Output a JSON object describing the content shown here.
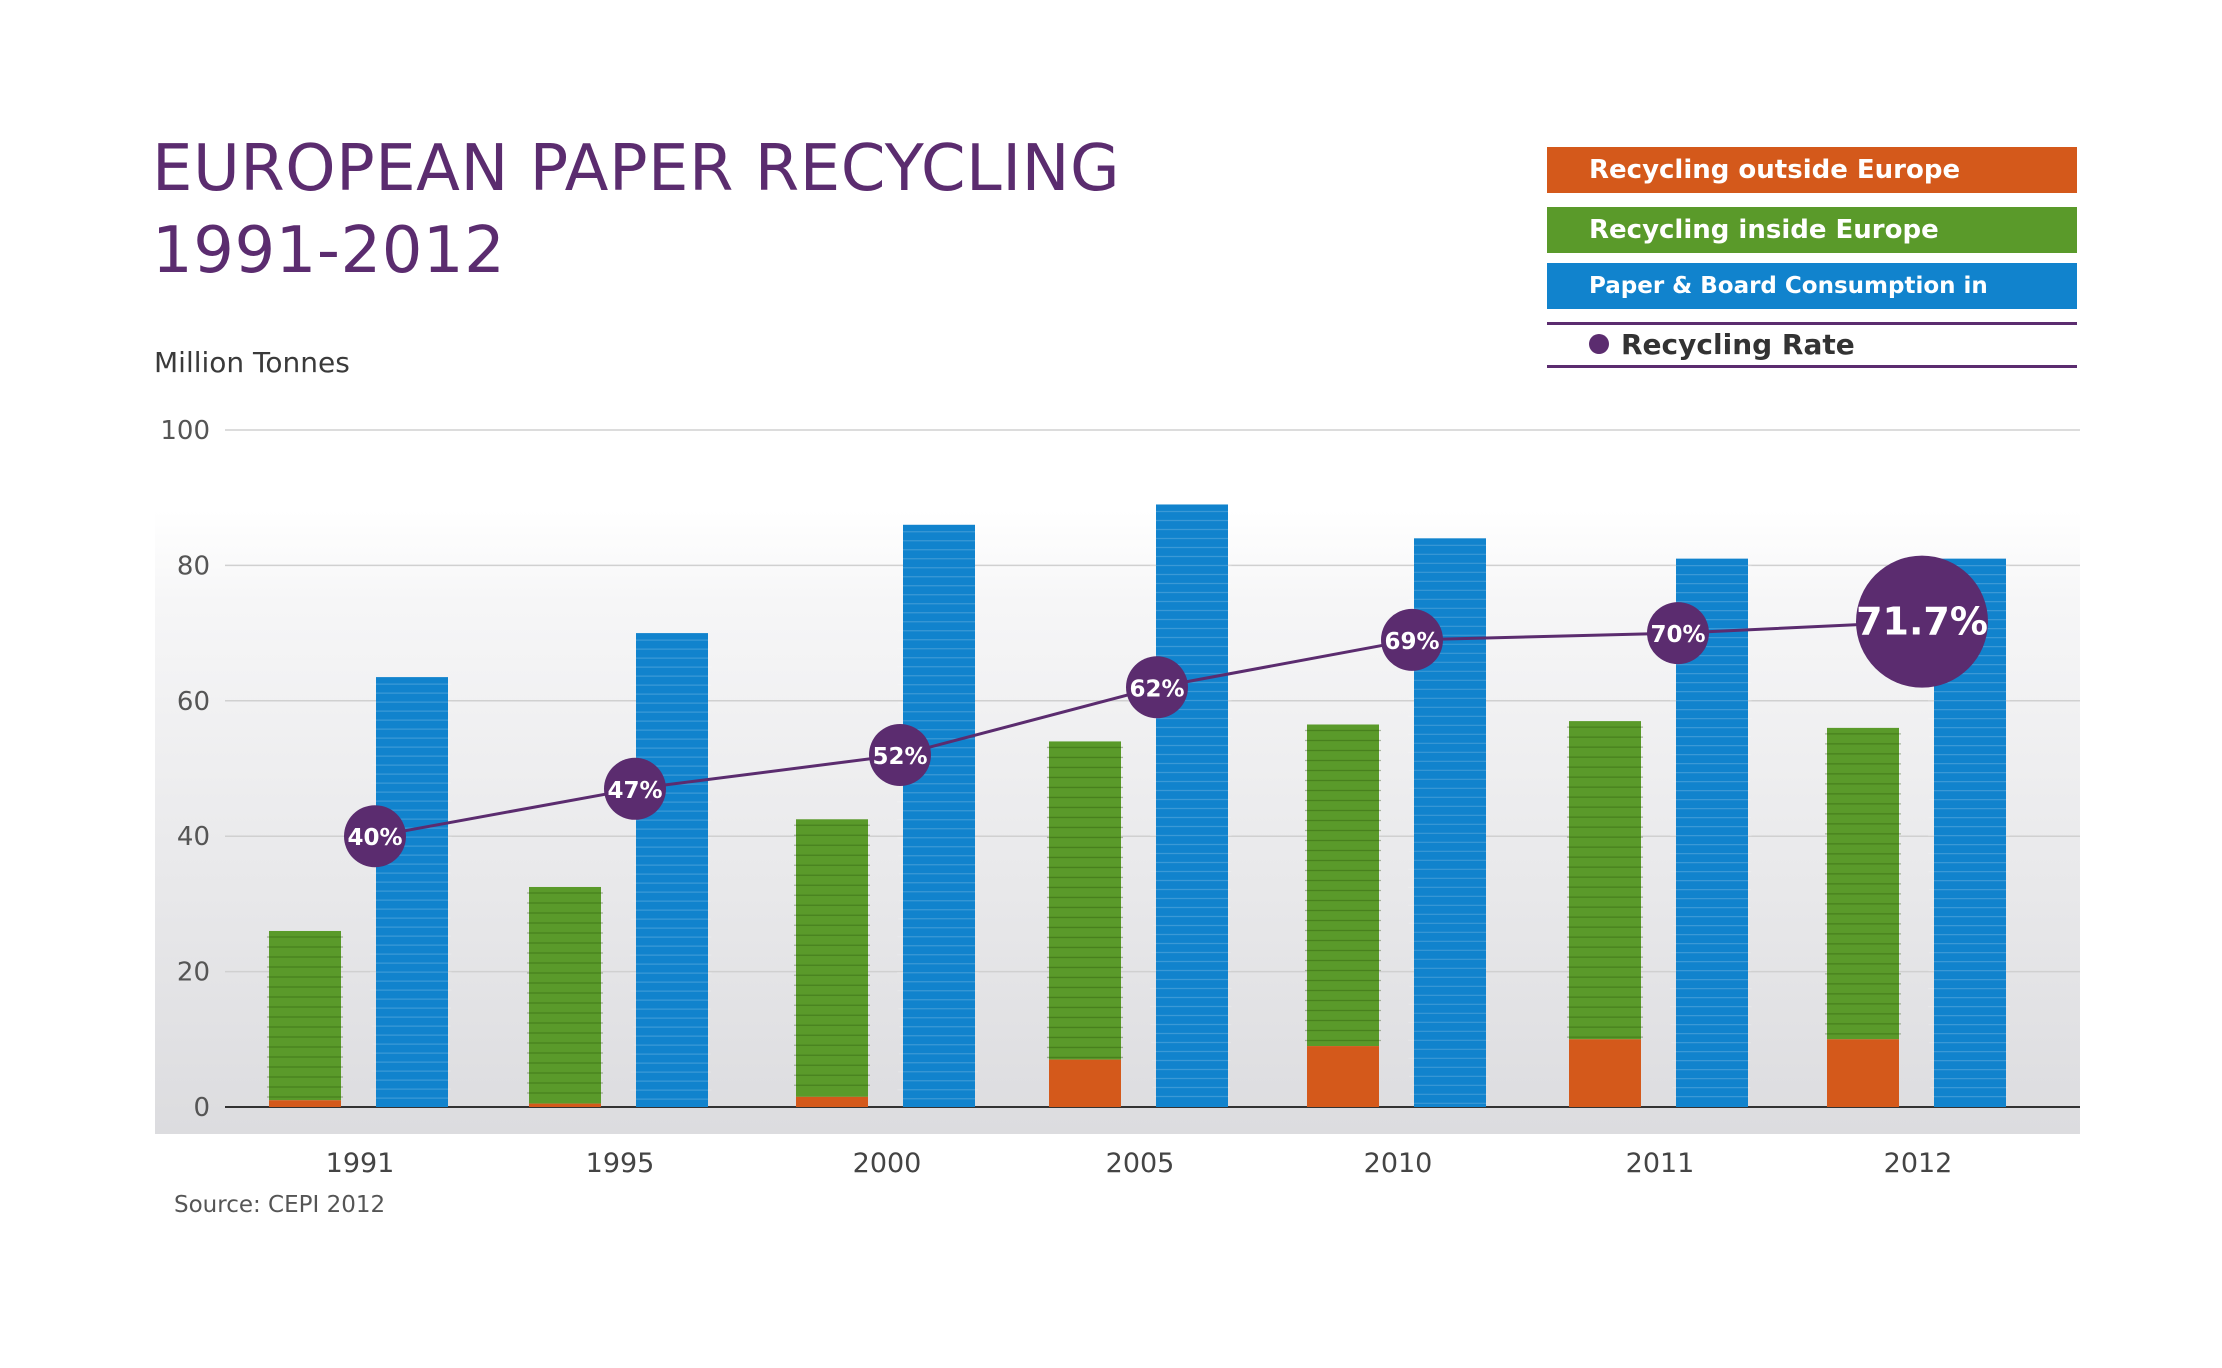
{
  "title": {
    "line1": "EUROPEAN PAPER RECYCLING",
    "line2": "1991-2012"
  },
  "unit_label": "Million Tonnes",
  "source": "Source: CEPI 2012",
  "legend": {
    "outside": "Recycling outside Europe",
    "inside": "Recycling inside Europe",
    "consumption": "Paper & Board Consumption in Europe",
    "rate": "Recycling Rate"
  },
  "colors": {
    "outside": "#d4591b",
    "inside": "#5a9a2a",
    "consumption": "#1183cd",
    "rate": "#5b2c6f",
    "title": "#5b2c6f"
  },
  "chart_data": {
    "type": "bar",
    "categories": [
      "1991",
      "1995",
      "2000",
      "2005",
      "2010",
      "2011",
      "2012"
    ],
    "ylim": [
      0,
      100
    ],
    "yticks": [
      "0",
      "20",
      "40",
      "60",
      "80",
      "100"
    ],
    "ylabel": "Million Tonnes",
    "series": [
      {
        "name": "Recycling outside Europe",
        "values": [
          1,
          0.5,
          1.5,
          7,
          9,
          10,
          10
        ]
      },
      {
        "name": "Recycling inside Europe",
        "values": [
          25,
          32,
          41,
          47,
          47.5,
          47,
          46
        ]
      },
      {
        "name": "Paper & Board Consumption in Europe",
        "values": [
          63.5,
          70,
          86,
          89,
          84,
          81,
          81
        ]
      }
    ],
    "rate": {
      "name": "Recycling Rate",
      "values": [
        40,
        47,
        52,
        62,
        69,
        70,
        71.7
      ],
      "labels": [
        "40%",
        "47%",
        "52%",
        "62%",
        "69%",
        "70%",
        "71.7%"
      ]
    }
  }
}
